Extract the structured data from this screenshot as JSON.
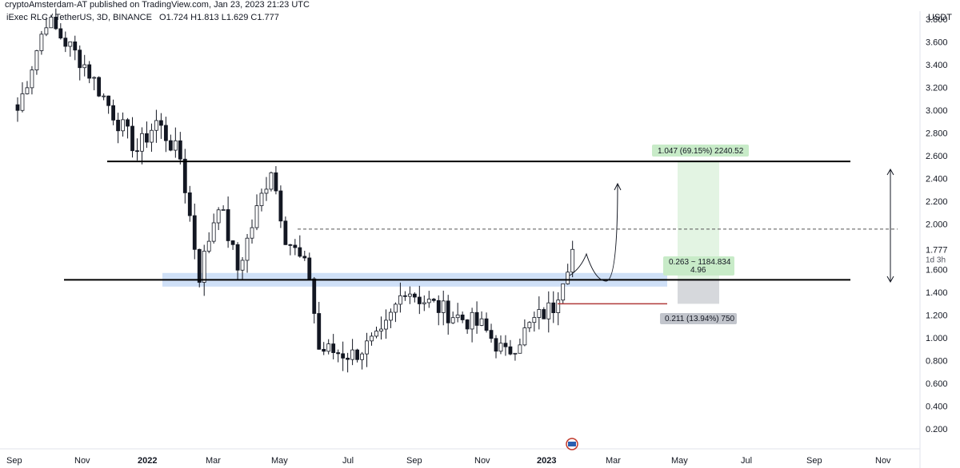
{
  "header": {
    "publisher": "cryptoAmsterdam-AT published on TradingView.com, Jan 23, 2023 21:23 UTC"
  },
  "symbol_line": {
    "name": "iExec RLC / TetherUS, 3D, BINANCE",
    "ohlc": "O1.724  H1.813  L1.629  C1.777"
  },
  "currency": "USDT",
  "price_tag": {
    "price": "1.777",
    "countdown": "1d 3h"
  },
  "colors": {
    "up": "#ffffff",
    "down": "#131722",
    "wick": "#131722",
    "support_zone": "#cfe0f7",
    "target_zone": "#e3f4e3",
    "stop_zone": "#d6d8dc",
    "stop_line": "#b03a3a",
    "level_line": "#000000"
  },
  "annotations": {
    "target": "1.047 (69.15%) 2240.52",
    "ratio_line1": "0.263 ~ 1184.834",
    "ratio_line2": "4.96",
    "stop": "0.211 (13.94%) 750"
  },
  "chart_data": {
    "type": "candlestick",
    "title": "iExec RLC / TetherUS, 3D, BINANCE",
    "ylabel": "USDT",
    "ylim": [
      0.05,
      3.85
    ],
    "y_ticks": [
      "0.200",
      "0.400",
      "0.600",
      "0.800",
      "1.000",
      "1.200",
      "1.400",
      "1.600",
      "2.000",
      "2.200",
      "2.400",
      "2.600",
      "2.800",
      "3.000",
      "3.200",
      "3.400",
      "3.600",
      "3.800"
    ],
    "x_ticks": [
      "Sep",
      "Nov",
      "2022",
      "Mar",
      "May",
      "Jul",
      "Sep",
      "Nov",
      "2023",
      "Mar",
      "May",
      "Jul",
      "Sep",
      "Nov"
    ],
    "x_ticks_bold": [
      "2022",
      "2023"
    ],
    "grid": false,
    "levels": {
      "resistance": 2.55,
      "support": 1.51,
      "dashed_target": 1.955,
      "support_zone": [
        1.45,
        1.57
      ],
      "entry": 1.51,
      "target_price": 2.557,
      "stop_price": 1.299
    },
    "position_tool": {
      "target_text": "1.047 (69.15%) 2240.52",
      "ratio": "0.263 ~ 1184.834",
      "rr": "4.96",
      "stop_text": "0.211 (13.94%) 750"
    },
    "anchors": [
      [
        0,
        3.0
      ],
      [
        6,
        3.8
      ],
      [
        14,
        3.4
      ],
      [
        21,
        2.9
      ],
      [
        25,
        2.65
      ],
      [
        29,
        2.9
      ],
      [
        34,
        2.58
      ],
      [
        38,
        1.55
      ],
      [
        42,
        2.2
      ],
      [
        46,
        1.6
      ],
      [
        53,
        2.5
      ],
      [
        56,
        1.9
      ],
      [
        61,
        1.55
      ],
      [
        63,
        0.9
      ],
      [
        70,
        0.85
      ],
      [
        76,
        1.0
      ],
      [
        81,
        1.45
      ],
      [
        84,
        1.35
      ],
      [
        90,
        1.22
      ],
      [
        97,
        1.1
      ],
      [
        102,
        0.85
      ],
      [
        108,
        1.15
      ],
      [
        112,
        1.28
      ],
      [
        114,
        1.55
      ],
      [
        116,
        1.777
      ]
    ]
  }
}
